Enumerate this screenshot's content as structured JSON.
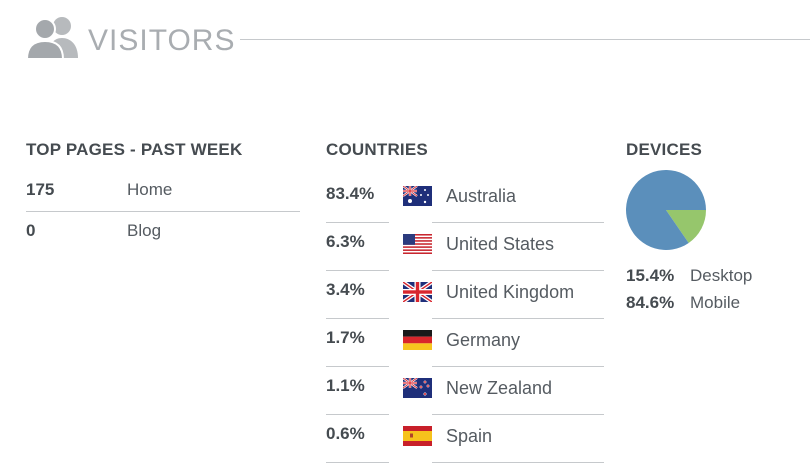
{
  "header": {
    "title": "VISITORS",
    "icon": "users-icon"
  },
  "top_pages": {
    "title": "TOP PAGES - PAST WEEK",
    "rows": [
      {
        "count": "175",
        "page": "Home"
      },
      {
        "count": "0",
        "page": "Blog"
      }
    ]
  },
  "countries": {
    "title": "COUNTRIES",
    "rows": [
      {
        "pct": "83.4%",
        "country": "Australia",
        "flag": "australia-flag-icon"
      },
      {
        "pct": "6.3%",
        "country": "United States",
        "flag": "united-states-flag-icon"
      },
      {
        "pct": "3.4%",
        "country": "United Kingdom",
        "flag": "united-kingdom-flag-icon"
      },
      {
        "pct": "1.7%",
        "country": "Germany",
        "flag": "germany-flag-icon"
      },
      {
        "pct": "1.1%",
        "country": "New Zealand",
        "flag": "new-zealand-flag-icon"
      },
      {
        "pct": "0.6%",
        "country": "Spain",
        "flag": "spain-flag-icon"
      }
    ]
  },
  "devices": {
    "title": "DEVICES",
    "legend": [
      {
        "pct": "15.4%",
        "label": "Desktop"
      },
      {
        "pct": "84.6%",
        "label": "Mobile"
      }
    ],
    "chart_data": {
      "type": "pie",
      "labels": [
        "Desktop",
        "Mobile"
      ],
      "values": [
        15.4,
        84.6
      ],
      "colors": [
        "#96c66c",
        "#5b8fbb"
      ]
    }
  }
}
